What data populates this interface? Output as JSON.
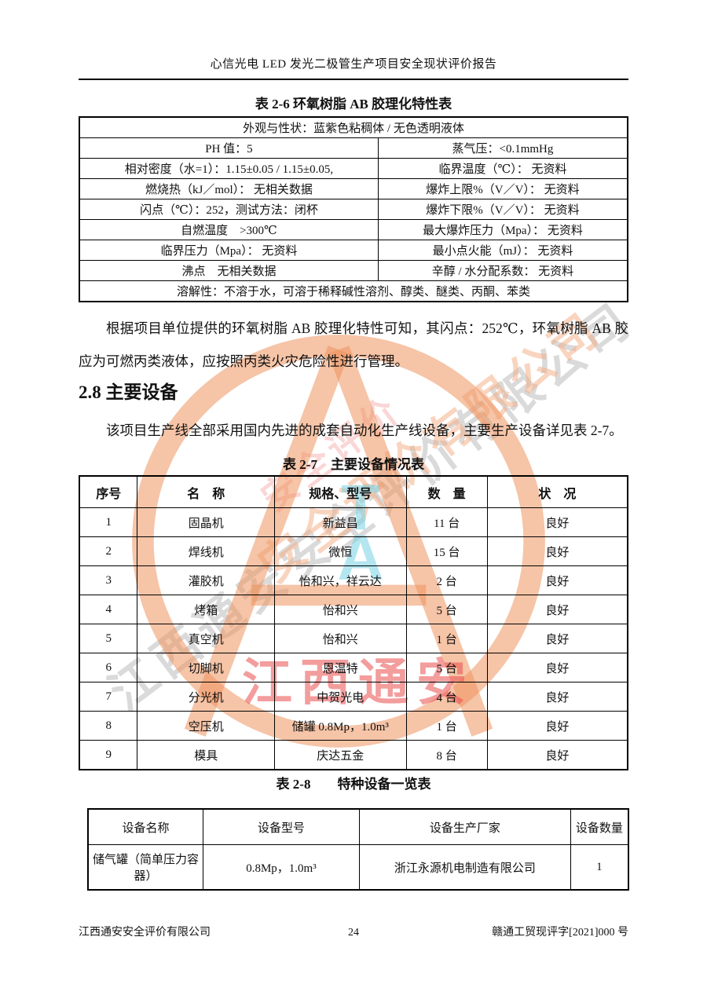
{
  "header": {
    "title": "心信光电 LED 发光二极管生产项目安全现状评价报告"
  },
  "table_2_6": {
    "caption": "表 2-6 环氧树脂 AB 胶理化特性表",
    "appearance_row": "外观与性状：蓝紫色粘稠体 / 无色透明液体",
    "pair_rows": [
      [
        "PH 值：5",
        "蒸气压：<0.1mmHg"
      ],
      [
        "相对密度（水=1）：1.15±0.05 / 1.15±0.05,",
        "临界温度（℃）： 无资料"
      ],
      [
        "燃烧热（kJ／mol）： 无相关数据",
        "爆炸上限%（V／V）： 无资料"
      ],
      [
        "闪点（℃）：252，测试方法：闭杯",
        "爆炸下限%（V／V）： 无资料"
      ],
      [
        "自燃温度　>300℃",
        "最大爆炸压力（Mpa）： 无资料"
      ],
      [
        "临界压力（Mpa）： 无资料",
        "最小点火能（mJ）： 无资料"
      ],
      [
        "沸点　无相关数据",
        "辛醇 / 水分配系数： 无资料"
      ]
    ],
    "solubility_row": "溶解性：不溶于水，可溶于稀释碱性溶剂、醇类、醚类、丙酮、苯类"
  },
  "body_text": {
    "paragraph_1": "根据项目单位提供的环氧树脂 AB 胶理化特性可知，其闪点：252℃，环氧树脂 AB 胶应为可燃丙类液体，应按照丙类火灾危险性进行管理。",
    "section_heading": "2.8 主要设备",
    "paragraph_2": "该项目生产线全部采用国内先进的成套自动化生产线设备，主要生产设备详见表 2-7。"
  },
  "table_2_7": {
    "caption": "表 2-7　主要设备情况表",
    "headers": [
      "序号",
      "名　称",
      "规格、型号",
      "数　量",
      "状　况"
    ],
    "rows": [
      [
        "1",
        "固晶机",
        "新益昌",
        "11 台",
        "良好"
      ],
      [
        "2",
        "焊线机",
        "微恒",
        "15 台",
        "良好"
      ],
      [
        "3",
        "灌胶机",
        "怡和兴，祥云达",
        "2 台",
        "良好"
      ],
      [
        "4",
        "烤箱",
        "怡和兴",
        "5 台",
        "良好"
      ],
      [
        "5",
        "真空机",
        "怡和兴",
        "1 台",
        "良好"
      ],
      [
        "6",
        "切脚机",
        "恩温特",
        "5 台",
        "良好"
      ],
      [
        "7",
        "分光机",
        "中贺光电",
        "4 台",
        "良好"
      ],
      [
        "8",
        "空压机",
        "储罐 0.8Mp，1.0m³",
        "1 台",
        "良好"
      ],
      [
        "9",
        "模具",
        "庆达五金",
        "8 台",
        "良好"
      ]
    ]
  },
  "table_2_8": {
    "caption": "表 2-8　　特种设备一览表",
    "headers": [
      "设备名称",
      "设备型号",
      "设备生产厂家",
      "设备数量"
    ],
    "rows": [
      [
        "储气罐（简单压力容器）",
        "0.8Mp，1.0m³",
        "浙江永源机电制造有限公司",
        "1"
      ]
    ]
  },
  "footer": {
    "company": "江西通安安全评价有限公司",
    "page_number": "24",
    "doc_number": "赣通工贸现评字[2021]000 号"
  },
  "watermark": {
    "red_stamp_text": "江西通安",
    "diagonal_text_gray": "江西通安安全评价有限公司",
    "diagonal_text_orange": "安全评价有限公司",
    "diagonal_text_pink": "安全评价",
    "ta_letter_t": "T",
    "ta_letter_a": "A",
    "logo_color": "#ee945f",
    "stamp_red": "#e94d4d",
    "ta_cyan": "#76d1e4",
    "diagonal_gray": "#acacac"
  }
}
